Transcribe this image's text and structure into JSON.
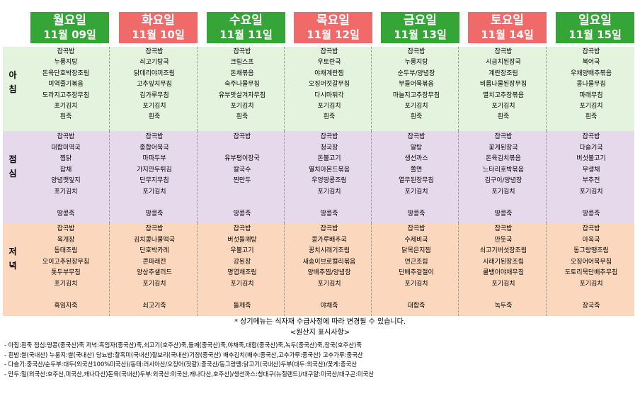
{
  "days": [
    {
      "day": "월요일",
      "date": "11월  09일",
      "color": "#35a537"
    },
    {
      "day": "화요일",
      "date": "11월  10일",
      "color": "#f06a6a"
    },
    {
      "day": "수요일",
      "date": "11월  11일",
      "color": "#35a537"
    },
    {
      "day": "목요일",
      "date": "11월  12일",
      "color": "#f06a6a"
    },
    {
      "day": "금요일",
      "date": "11월  13일",
      "color": "#35a537"
    },
    {
      "day": "토요일",
      "date": "11월  14일",
      "color": "#f06a6a"
    },
    {
      "day": "일요일",
      "date": "11월  15일",
      "color": "#35a537"
    }
  ],
  "meals": [
    {
      "key": "breakfast",
      "label_chars": [
        "아",
        "침"
      ]
    },
    {
      "key": "lunch",
      "label_chars": [
        "점",
        "심"
      ]
    },
    {
      "key": "dinner",
      "label_chars": [
        "저",
        "녁"
      ]
    }
  ],
  "menus": {
    "breakfast": [
      [
        "잡곡밥",
        "누룽지탕",
        "돈육단호박장조림",
        "미역줄기볶음",
        "도라지고추장무침",
        "포기김치",
        "흰죽"
      ],
      [
        "잡곡밥",
        "쇠고기탕국",
        "닭데리야끼조림",
        "고추잎지무침",
        "김가루무침",
        "포기김치",
        "흰죽"
      ],
      [
        "잡곡밥",
        "크림스프",
        "돈채볶음",
        "숙주나물무침",
        "유부맛살겨자무침",
        "포기김치",
        "흰죽"
      ],
      [
        "잡곡밥",
        "우토란국",
        "야채계란찜",
        "오징어젓갈무침",
        "다시마튀각",
        "포기김치",
        "흰죽"
      ],
      [
        "잡곡밥",
        "누룽지탕",
        "순두부/양념장",
        "부들어묵볶음",
        "마늘지고추장무침",
        "포기김치",
        "흰죽"
      ],
      [
        "잡곡밥",
        "시금치된장국",
        "계란장조림",
        "비름나물된장무침",
        "멸치고추장볶음",
        "포기김치",
        "흰죽"
      ],
      [
        "잡곡밥",
        "북어국",
        "우채양배추볶음",
        "콩나물무침",
        "파래무침",
        "포기김치",
        "흰죽"
      ]
    ],
    "lunch": [
      [
        "잡곡밥",
        "대합미역국",
        "찜닭",
        "잡채",
        "양념깻잎지",
        "포기김치",
        "",
        "땅콩죽"
      ],
      [
        "잡곡밥",
        "종합어묵국",
        "마파두부",
        "가지만두튀김",
        "단무지무침",
        "포기김치",
        "",
        "땅콩죽"
      ],
      [
        "잡곡밥",
        "",
        "유부평이장국",
        "칼국수",
        "찐만두",
        "",
        "",
        "땅콩죽"
      ],
      [
        "잡곡밥",
        "청국장",
        "돈불고기",
        "멸치아몬드볶음",
        "우엉땅콩조림",
        "포기김치",
        "",
        "땅콩죽"
      ],
      [
        "잡곡밥",
        "알탕",
        "생선까스",
        "쫄면",
        "열무된장무침",
        "포기김치",
        "",
        "땅콩죽"
      ],
      [
        "잡곡밥",
        "꽃게된장국",
        "돈육김치볶음",
        "느타리호박볶음",
        "김구이/양념장",
        "포기김치",
        "",
        "땅콩죽"
      ],
      [
        "잡곡밥",
        "다슬기국",
        "버섯불고기",
        "무생채",
        "부추전",
        "포기김치",
        "",
        "땅콩죽"
      ]
    ],
    "dinner": [
      [
        "잡곡밥",
        "육개장",
        "동태조림",
        "오이고추된장무침",
        "톳두부무침",
        "포기김치",
        "",
        "흑임자죽"
      ],
      [
        "잡곡밥",
        "김치콩나물떡국",
        "단호박카레",
        "콘파래전",
        "양상추샐러드",
        "포기김치",
        "",
        "쇠고기죽"
      ],
      [
        "잡곡밥",
        "버섯들깨탕",
        "우불고기",
        "강된장",
        "명엽채조림",
        "포기김치",
        "",
        "들깨죽"
      ],
      [
        "잡곡밥",
        "콩가루배추국",
        "꽁치시래기조림",
        "새송이브로컬리볶음",
        "양배추찜/양념장",
        "포기김치",
        "",
        "야채죽"
      ],
      [
        "잡곡밥",
        "수제비국",
        "닭목은지찜",
        "연근조림",
        "단배추겉절이",
        "포기김치",
        "",
        "대합죽"
      ],
      [
        "잡곡밥",
        "만둣국",
        "쇠고기버섯장조림",
        "시래기된장조림",
        "쿨뱅이야채무침",
        "포기김치",
        "",
        "녹두죽"
      ],
      [
        "잡곡밥",
        "아욱국",
        "동그랑땡조림",
        "오징어어묵무침",
        "도토리묵단배추무침",
        "포기김치",
        "",
        "장국죽"
      ]
    ]
  },
  "notice": "* 상기메뉴는 식자재 수급사정에 따라 변경될 수 있습니다.",
  "origin_title": "<원산지 표시사항>",
  "origin_lines": [
    "- 아침:흰죽 점심:땅콩(중국산)죽  저녁:흑임자(중국산)죽,쇠고기(호주산)죽,들깨(중국산)죽,야채죽,대합(중국산)죽,녹두(중국산)죽,장국(호주산)죽",
    "- 흰밥:쌀(국내산) 누룽지:쌀(국내산) 당뇨밥:찰흑미(국내산)찰보리(국내산)기장(중국산) 배추김치(배추:중국산,고추가루:중국산)  고추가루:중국산",
    "- 다슬기:중국산/순두부:대두(외국산100%미국산)/동태:러시아산/오징어(젓갈):중국산/동그랑땡:닭고기(국내산)두부(대두:외국산)/꽃게:중국산",
    "- 만두:밀(외국산:호주산,미국산,캐나다산)돈육(국내산)두부:외국산:미국산,캐나다산,호주산)/생선까스:청대구(뉴질랜드)/대구알:미국산/대구곤:미국산"
  ]
}
